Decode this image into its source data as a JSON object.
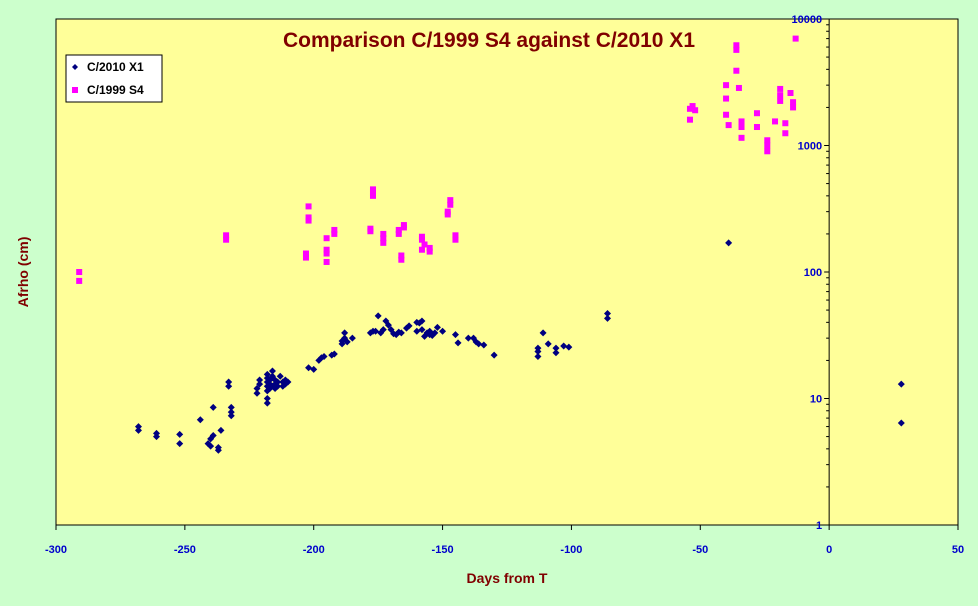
{
  "chart_data": {
    "type": "scatter",
    "title": "Comparison C/1999 S4 against C/2010 X1",
    "xlabel": "Days from T",
    "ylabel": "Afrho (cm)",
    "xlim": [
      -300,
      50
    ],
    "ylim": [
      1,
      10000
    ],
    "y_scale": "log",
    "x_ticks": [
      "-300",
      "-250",
      "-200",
      "-150",
      "-100",
      "-50",
      "0",
      "50"
    ],
    "y_ticks": [
      "1",
      "10",
      "100",
      "1000",
      "10000"
    ],
    "grid": false,
    "legend_position": "top-left",
    "plot_background": "#ffff99",
    "page_background": "#ccffcc",
    "series": [
      {
        "name": "C/2010 X1",
        "color": "#000080",
        "marker": "diamond",
        "points": [
          [
            -268,
            5.6
          ],
          [
            -268,
            6.0
          ],
          [
            -261,
            5.0
          ],
          [
            -261,
            5.3
          ],
          [
            -252,
            4.4
          ],
          [
            -252,
            5.2
          ],
          [
            -244,
            6.8
          ],
          [
            -241,
            4.4
          ],
          [
            -240,
            4.2
          ],
          [
            -240,
            4.8
          ],
          [
            -239,
            5.1
          ],
          [
            -239,
            8.5
          ],
          [
            -237,
            3.9
          ],
          [
            -237,
            4.1
          ],
          [
            -236,
            5.6
          ],
          [
            -233,
            12.5
          ],
          [
            -233,
            13.5
          ],
          [
            -232,
            7.3
          ],
          [
            -232,
            7.8
          ],
          [
            -232,
            8.5
          ],
          [
            -222,
            11.0
          ],
          [
            -222,
            12.0
          ],
          [
            -221,
            13.0
          ],
          [
            -221,
            14.0
          ],
          [
            -218,
            11.5
          ],
          [
            -218,
            12.5
          ],
          [
            -218,
            13.5
          ],
          [
            -218,
            14.5
          ],
          [
            -218,
            15.5
          ],
          [
            -218,
            9.2
          ],
          [
            -218,
            10.0
          ],
          [
            -217,
            12.0
          ],
          [
            -217,
            13.0
          ],
          [
            -217,
            14.0
          ],
          [
            -216,
            15.0
          ],
          [
            -216,
            16.5
          ],
          [
            -216,
            12.5
          ],
          [
            -215,
            12.0
          ],
          [
            -215,
            13.0
          ],
          [
            -215,
            14.0
          ],
          [
            -214,
            13.5
          ],
          [
            -214,
            12.5
          ],
          [
            -213,
            15.0
          ],
          [
            -212,
            12.5
          ],
          [
            -212,
            13.5
          ],
          [
            -211,
            13.0
          ],
          [
            -211,
            14.0
          ],
          [
            -210,
            13.5
          ],
          [
            -202,
            17.5
          ],
          [
            -200,
            17.0
          ],
          [
            -198,
            20.0
          ],
          [
            -197,
            21.0
          ],
          [
            -196,
            21.5
          ],
          [
            -193,
            22.0
          ],
          [
            -192,
            22.5
          ],
          [
            -189,
            27.0
          ],
          [
            -189,
            28.5
          ],
          [
            -188,
            30.0
          ],
          [
            -188,
            33.0
          ],
          [
            -187,
            28.0
          ],
          [
            -185,
            30.0
          ],
          [
            -178,
            33.0
          ],
          [
            -177,
            34.0
          ],
          [
            -176,
            34.0
          ],
          [
            -175,
            45.0
          ],
          [
            -174,
            33.0
          ],
          [
            -173,
            35.0
          ],
          [
            -172,
            41.0
          ],
          [
            -171,
            38.0
          ],
          [
            -170,
            35.0
          ],
          [
            -169,
            32.5
          ],
          [
            -168,
            32.0
          ],
          [
            -167,
            33.5
          ],
          [
            -166,
            33.0
          ],
          [
            -164,
            36.0
          ],
          [
            -163,
            37.5
          ],
          [
            -160,
            40.0
          ],
          [
            -160,
            34.0
          ],
          [
            -159,
            39.5
          ],
          [
            -158,
            41.0
          ],
          [
            -158,
            35.0
          ],
          [
            -157,
            31.0
          ],
          [
            -156,
            33.0
          ],
          [
            -155,
            32.0
          ],
          [
            -155,
            34.0
          ],
          [
            -154,
            31.5
          ],
          [
            -153,
            33.0
          ],
          [
            -152,
            36.5
          ],
          [
            -150,
            34.0
          ],
          [
            -145,
            32.0
          ],
          [
            -144,
            27.5
          ],
          [
            -140,
            30.0
          ],
          [
            -138,
            30.0
          ],
          [
            -137,
            28.0
          ],
          [
            -136,
            27.0
          ],
          [
            -134,
            26.5
          ],
          [
            -130,
            22.0
          ],
          [
            -113,
            21.5
          ],
          [
            -113,
            23.5
          ],
          [
            -113,
            25.0
          ],
          [
            -111,
            33.0
          ],
          [
            -109,
            27.0
          ],
          [
            -106,
            23.0
          ],
          [
            -106,
            25.0
          ],
          [
            -103,
            26.0
          ],
          [
            -101,
            25.5
          ],
          [
            -86,
            43.0
          ],
          [
            -86,
            47.0
          ],
          [
            -39,
            170.0
          ],
          [
            28,
            13.0
          ],
          [
            28,
            6.4
          ]
        ]
      },
      {
        "name": "C/1999 S4",
        "color": "#ff00ff",
        "marker": "square",
        "points": [
          [
            -291,
            100
          ],
          [
            -291,
            85
          ],
          [
            -234,
            195
          ],
          [
            -234,
            180
          ],
          [
            -203,
            140
          ],
          [
            -203,
            130
          ],
          [
            -202,
            330
          ],
          [
            -202,
            270
          ],
          [
            -202,
            255
          ],
          [
            -195,
            185
          ],
          [
            -195,
            150
          ],
          [
            -195,
            140
          ],
          [
            -195,
            120
          ],
          [
            -192,
            215
          ],
          [
            -192,
            200
          ],
          [
            -178,
            220
          ],
          [
            -178,
            210
          ],
          [
            -177,
            450
          ],
          [
            -177,
            425
          ],
          [
            -177,
            400
          ],
          [
            -173,
            200
          ],
          [
            -173,
            185
          ],
          [
            -173,
            170
          ],
          [
            -167,
            215
          ],
          [
            -167,
            200
          ],
          [
            -166,
            135
          ],
          [
            -166,
            125
          ],
          [
            -165,
            235
          ],
          [
            -165,
            225
          ],
          [
            -158,
            190
          ],
          [
            -158,
            180
          ],
          [
            -158,
            150
          ],
          [
            -157,
            165
          ],
          [
            -155,
            155
          ],
          [
            -155,
            145
          ],
          [
            -148,
            300
          ],
          [
            -148,
            285
          ],
          [
            -147,
            370
          ],
          [
            -147,
            340
          ],
          [
            -145,
            195
          ],
          [
            -145,
            180
          ],
          [
            -54,
            1950
          ],
          [
            -54,
            1600
          ],
          [
            -53,
            2050
          ],
          [
            -52,
            1900
          ],
          [
            -40,
            3000
          ],
          [
            -40,
            2350
          ],
          [
            -40,
            1750
          ],
          [
            -39,
            1450
          ],
          [
            -36,
            6200
          ],
          [
            -36,
            5700
          ],
          [
            -36,
            3900
          ],
          [
            -35,
            2850
          ],
          [
            -34,
            1550
          ],
          [
            -34,
            1400
          ],
          [
            -34,
            1150
          ],
          [
            -28,
            1800
          ],
          [
            -28,
            1400
          ],
          [
            -24,
            1100
          ],
          [
            -24,
            1000
          ],
          [
            -24,
            900
          ],
          [
            -21,
            1550
          ],
          [
            -19,
            2800
          ],
          [
            -19,
            2500
          ],
          [
            -19,
            2250
          ],
          [
            -17,
            1500
          ],
          [
            -17,
            1250
          ],
          [
            -15,
            2600
          ],
          [
            -14,
            2200
          ],
          [
            -14,
            2000
          ],
          [
            -13,
            7000
          ]
        ]
      }
    ]
  }
}
